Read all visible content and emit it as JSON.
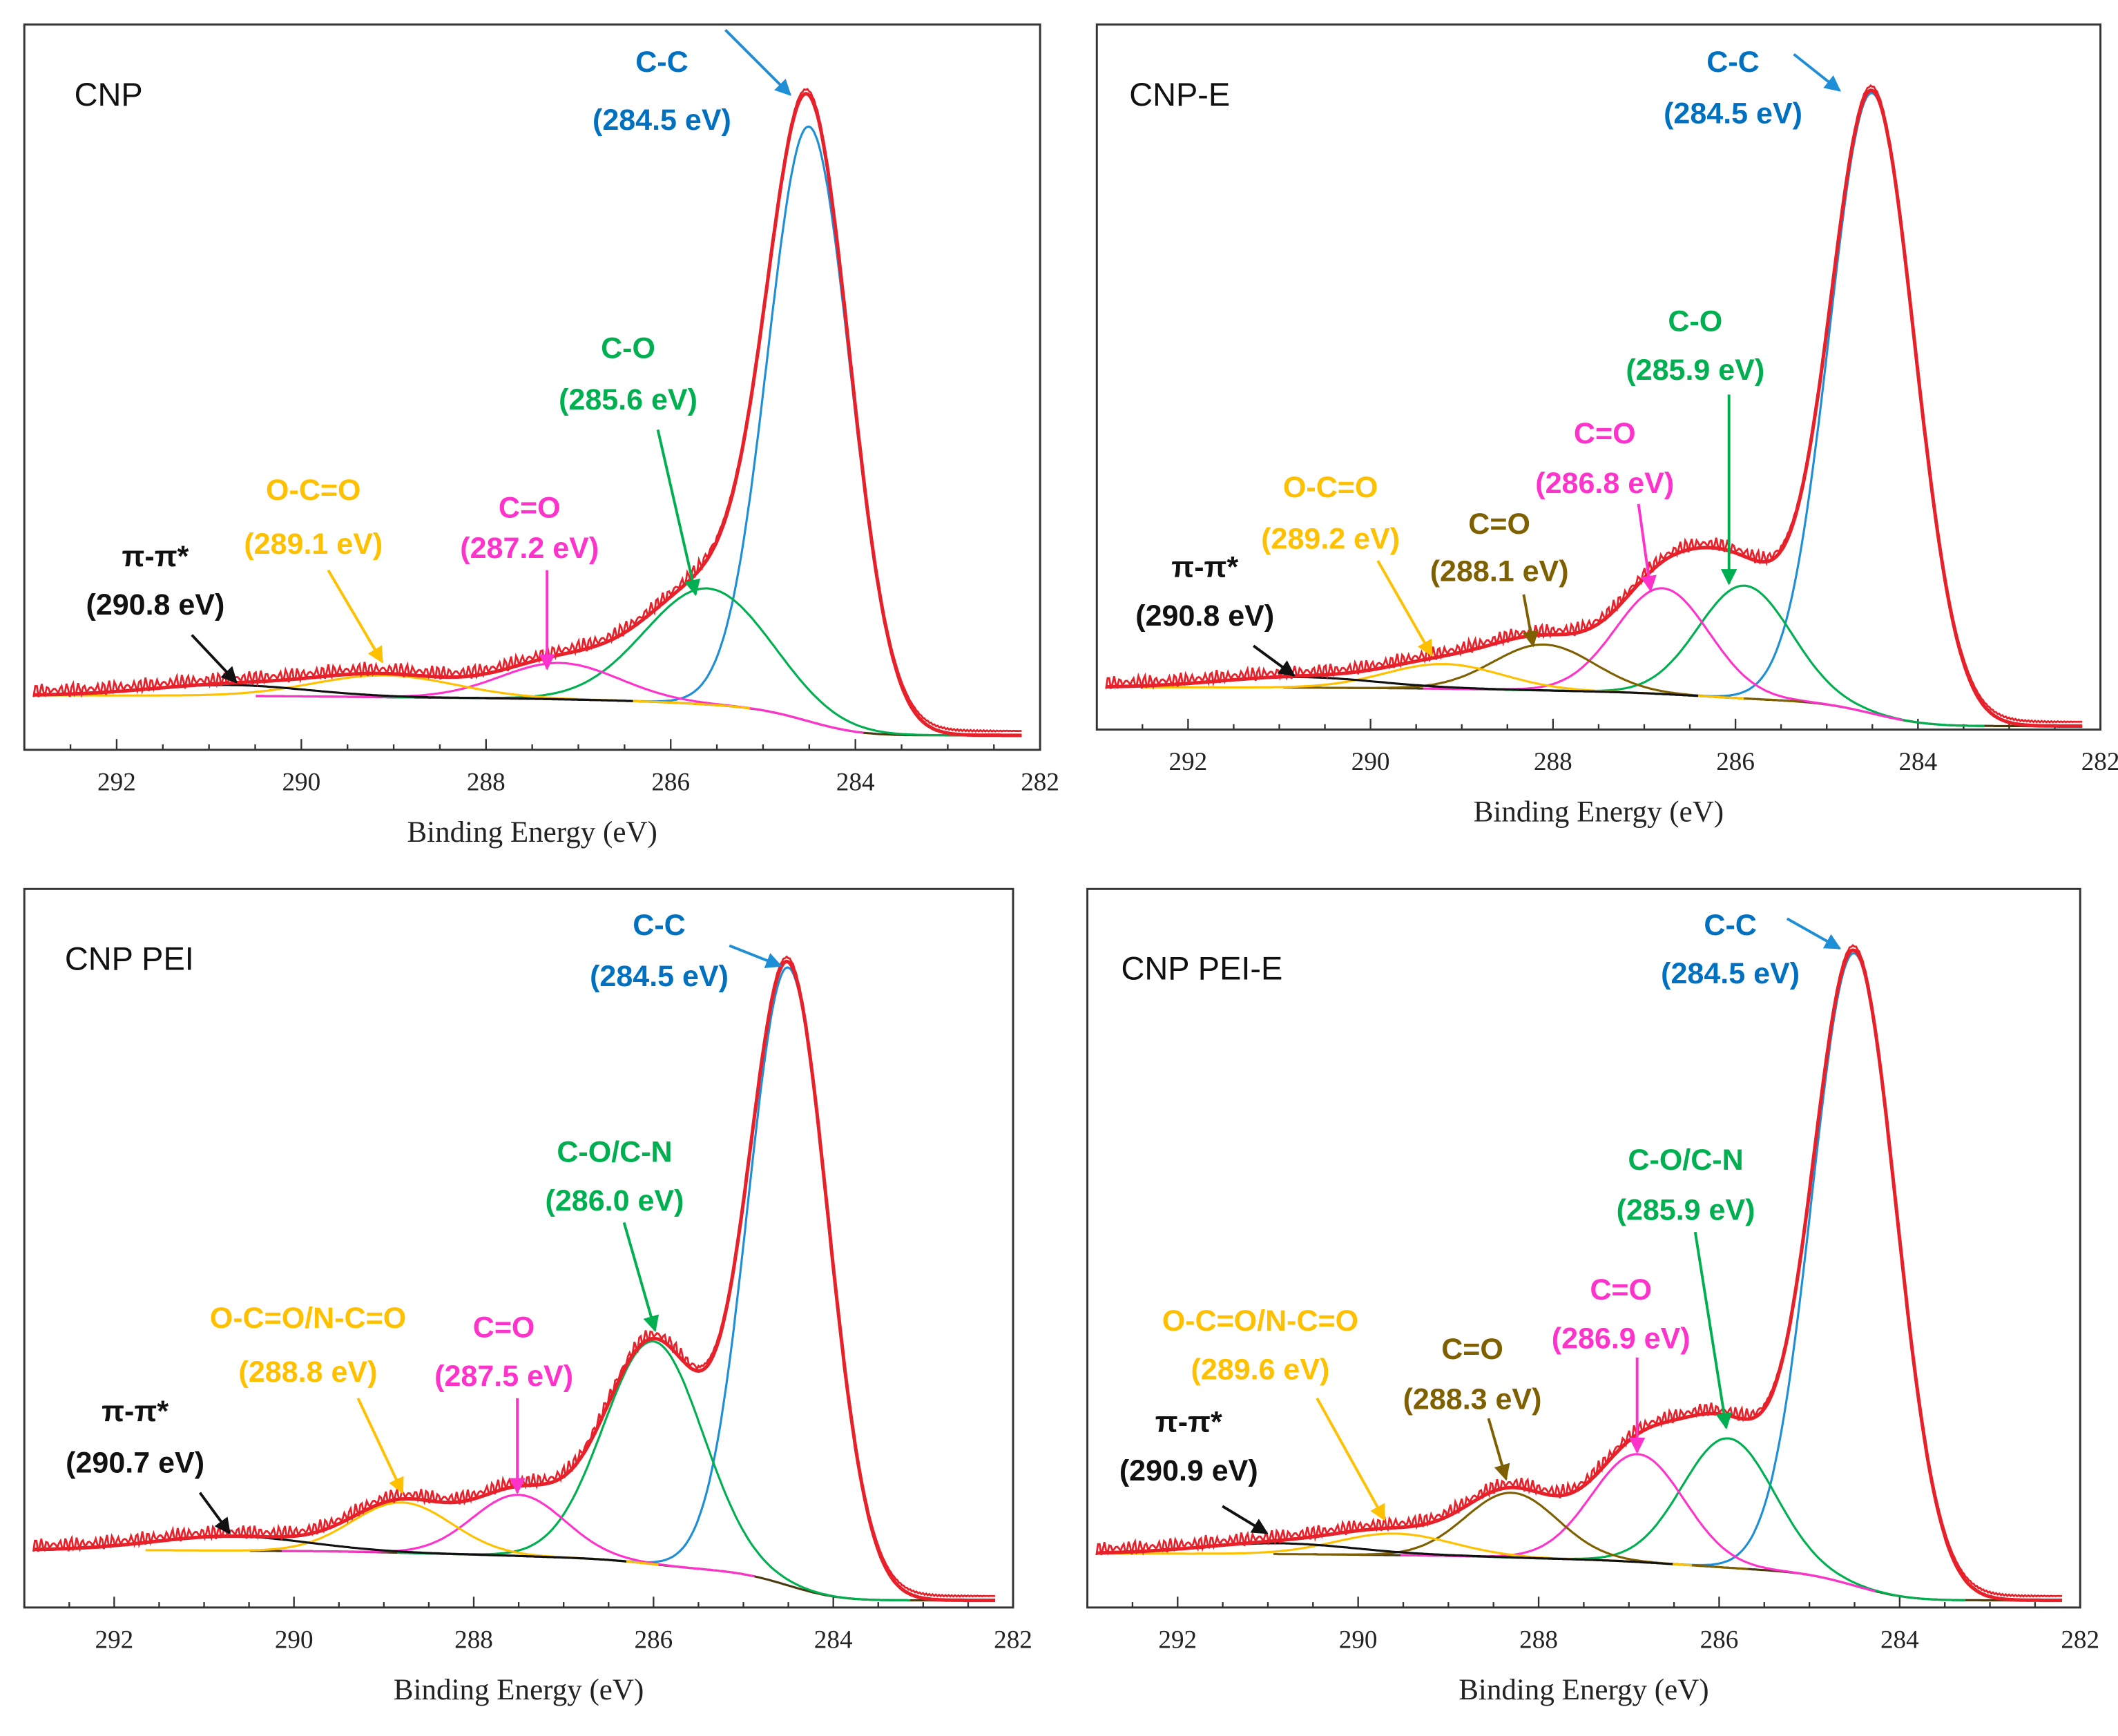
{
  "chart_data": [
    {
      "type": "line",
      "title": "CNP",
      "xlabel": "Binding Energy (eV)",
      "ylabel": "",
      "xlim": [
        293,
        282
      ],
      "xticks": [
        292,
        290,
        288,
        286,
        284,
        282
      ],
      "ylim": [
        0,
        100
      ],
      "background": {
        "left": 7.5,
        "right": 2
      },
      "envelope_color": "#e8202a",
      "peaks": [
        {
          "label": "C-C",
          "energy_label": "(284.5 eV)",
          "center": 284.5,
          "height": 82,
          "fwhm": 1.05,
          "color": "#1e8fd6"
        },
        {
          "label": "C-O",
          "energy_label": "(285.6 eV)",
          "center": 285.6,
          "height": 16,
          "fwhm": 1.6,
          "color": "#00b050"
        },
        {
          "label": "C=O",
          "energy_label": "(287.2 eV)",
          "center": 287.2,
          "height": 5,
          "fwhm": 1.5,
          "color": "#ff33cc"
        },
        {
          "label": "O-C=O",
          "energy_label": "(289.1 eV)",
          "center": 289.1,
          "height": 3,
          "fwhm": 1.8,
          "color": "#ffc000"
        },
        {
          "label": "π-π*",
          "energy_label": "(290.8 eV)",
          "center": 290.8,
          "height": 1.5,
          "fwhm": 2.0,
          "color": "#111111"
        }
      ]
    },
    {
      "type": "line",
      "title": "CNP-E",
      "xlabel": "Binding Energy (eV)",
      "ylabel": "",
      "xlim": [
        293,
        282
      ],
      "xticks": [
        292,
        290,
        288,
        286,
        284,
        282
      ],
      "ylim": [
        0,
        100
      ],
      "background": {
        "left": 6,
        "right": 0.5
      },
      "envelope_color": "#e8202a",
      "peaks": [
        {
          "label": "C-C",
          "energy_label": "(284.5 eV)",
          "center": 284.5,
          "height": 88,
          "fwhm": 1.1,
          "color": "#1e8fd6"
        },
        {
          "label": "C-O",
          "energy_label": "(285.9 eV)",
          "center": 285.9,
          "height": 16,
          "fwhm": 1.2,
          "color": "#00b050"
        },
        {
          "label": "C=O",
          "energy_label": "(286.8 eV)",
          "center": 286.8,
          "height": 15,
          "fwhm": 1.2,
          "color": "#ff33cc"
        },
        {
          "label": "C=O",
          "energy_label": "(288.1 eV)",
          "center": 288.1,
          "height": 6.5,
          "fwhm": 1.3,
          "color": "#7f6000"
        },
        {
          "label": "O-C=O",
          "energy_label": "(289.2 eV)",
          "center": 289.2,
          "height": 3.5,
          "fwhm": 1.5,
          "color": "#ffc000"
        },
        {
          "label": "π-π*",
          "energy_label": "(290.8 eV)",
          "center": 290.8,
          "height": 1.5,
          "fwhm": 2.0,
          "color": "#111111"
        }
      ]
    },
    {
      "type": "line",
      "title": "CNP PEI",
      "xlabel": "Binding Energy (eV)",
      "ylabel": "",
      "xlim": [
        293,
        282
      ],
      "xticks": [
        292,
        290,
        288,
        286,
        284,
        282
      ],
      "ylim": [
        0,
        100
      ],
      "background": {
        "left": 8,
        "right": 1
      },
      "envelope_color": "#e8202a",
      "peaks": [
        {
          "label": "C-C",
          "energy_label": "(284.5 eV)",
          "center": 284.5,
          "height": 86,
          "fwhm": 1.05,
          "color": "#1e8fd6"
        },
        {
          "label": "C-O/C-N",
          "energy_label": "(286.0 eV)",
          "center": 286.0,
          "height": 31,
          "fwhm": 1.3,
          "color": "#00b050"
        },
        {
          "label": "C=O",
          "energy_label": "(287.5 eV)",
          "center": 287.5,
          "height": 8.5,
          "fwhm": 1.2,
          "color": "#ff33cc"
        },
        {
          "label": "O-C=O/N-C=O",
          "energy_label": "(288.8 eV)",
          "center": 288.8,
          "height": 7,
          "fwhm": 1.3,
          "color": "#ffc000"
        },
        {
          "label": "π-π*",
          "energy_label": "(290.7 eV)",
          "center": 290.7,
          "height": 2,
          "fwhm": 2.0,
          "color": "#111111"
        }
      ]
    },
    {
      "type": "line",
      "title": "CNP PEI-E",
      "xlabel": "Binding Energy (eV)",
      "ylabel": "",
      "xlim": [
        293,
        282
      ],
      "xticks": [
        292,
        290,
        288,
        286,
        284,
        282
      ],
      "ylim": [
        0,
        100
      ],
      "background": {
        "left": 7.5,
        "right": 1
      },
      "envelope_color": "#e8202a",
      "peaks": [
        {
          "label": "C-C",
          "energy_label": "(284.5 eV)",
          "center": 284.5,
          "height": 88,
          "fwhm": 1.1,
          "color": "#1e8fd6"
        },
        {
          "label": "C-O/C-N",
          "energy_label": "(285.9 eV)",
          "center": 285.9,
          "height": 18,
          "fwhm": 1.2,
          "color": "#00b050"
        },
        {
          "label": "C=O",
          "energy_label": "(286.9 eV)",
          "center": 286.9,
          "height": 15,
          "fwhm": 1.2,
          "color": "#ff33cc"
        },
        {
          "label": "C=O",
          "energy_label": "(288.3 eV)",
          "center": 288.3,
          "height": 9,
          "fwhm": 1.2,
          "color": "#7f6000"
        },
        {
          "label": "O-C=O/N-C=O",
          "energy_label": "(289.6 eV)",
          "center": 289.6,
          "height": 3,
          "fwhm": 1.5,
          "color": "#ffc000"
        },
        {
          "label": "π-π*",
          "energy_label": "(290.9 eV)",
          "center": 290.9,
          "height": 1.5,
          "fwhm": 2.0,
          "color": "#111111"
        }
      ]
    }
  ]
}
